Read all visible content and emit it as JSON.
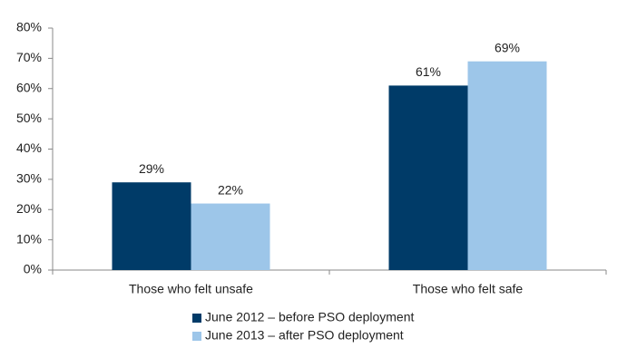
{
  "chart_data": {
    "type": "bar",
    "categories": [
      "Those who felt unsafe",
      "Those who felt safe"
    ],
    "series": [
      {
        "name": "June 2012 – before PSO deployment",
        "color": "#003b68",
        "values": [
          29,
          61
        ],
        "value_labels": [
          "29%",
          "61%"
        ]
      },
      {
        "name": "June 2013 – after PSO deployment",
        "color": "#9dc6e9",
        "values": [
          22,
          69
        ],
        "value_labels": [
          "22%",
          "69%"
        ]
      }
    ],
    "ylim": [
      0,
      80
    ],
    "yticks": [
      {
        "value": 0,
        "label": "0%"
      },
      {
        "value": 10,
        "label": "10%"
      },
      {
        "value": 20,
        "label": "20%"
      },
      {
        "value": 30,
        "label": "30%"
      },
      {
        "value": 40,
        "label": "40%"
      },
      {
        "value": 50,
        "label": "50%"
      },
      {
        "value": 60,
        "label": "60%"
      },
      {
        "value": 70,
        "label": "70%"
      },
      {
        "value": 80,
        "label": "80%"
      }
    ],
    "grid": false,
    "legend": "bottom"
  }
}
